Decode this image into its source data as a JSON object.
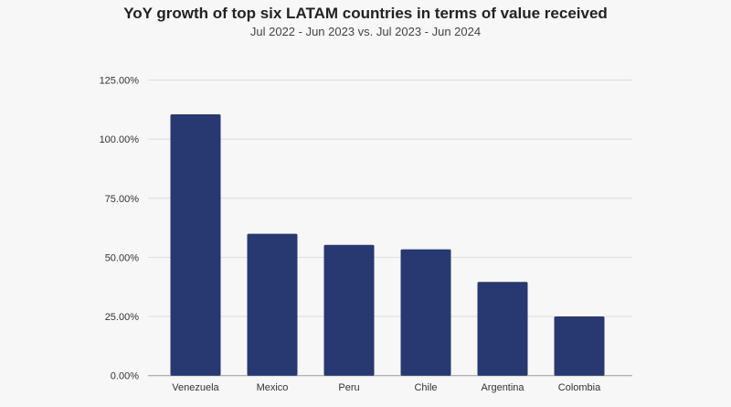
{
  "chart_data": {
    "type": "bar",
    "title": "YoY growth of top six LATAM countries in terms of value received",
    "subtitle": "Jul 2022 - Jun 2023 vs. Jul 2023 - Jun 2024",
    "xlabel": "",
    "ylabel": "",
    "categories": [
      "Venezuela",
      "Mexico",
      "Peru",
      "Chile",
      "Argentina",
      "Colombia"
    ],
    "values": [
      110.5,
      60.0,
      55.3,
      53.4,
      39.6,
      25.0
    ],
    "unit": "%",
    "ylim": [
      0,
      125
    ],
    "yticks": [
      0,
      25,
      50,
      75,
      100,
      125
    ],
    "ytick_labels": [
      "0.00%",
      "25.00%",
      "50.00%",
      "75.00%",
      "100.00%",
      "125.00%"
    ],
    "grid": true,
    "bar_color": "#283870"
  }
}
